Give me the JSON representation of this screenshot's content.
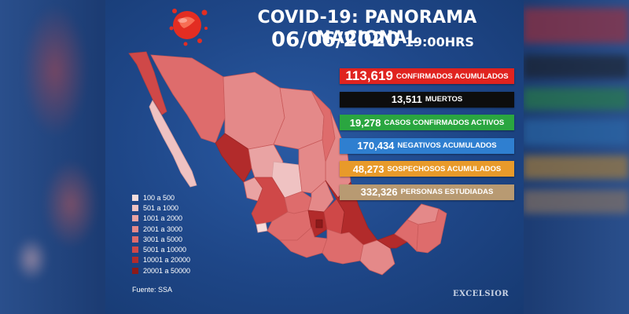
{
  "header": {
    "title": "COVID-19: PANORAMA NACIONAL",
    "date": "06/06/2020",
    "time": "19:00HRS"
  },
  "stats": [
    {
      "value": "113,619",
      "label": "CONFIRMADOS ACUMULADOS",
      "color": "#e0231f",
      "size": "big"
    },
    {
      "value": "13,511",
      "label": "MUERTOS",
      "color": "#0d0d0d",
      "size": "normal"
    },
    {
      "value": "19,278",
      "label": "CASOS CONFIRMADOS ACTIVOS",
      "color": "#2aa640",
      "size": "normal"
    },
    {
      "value": "170,434",
      "label": "NEGATIVOS ACUMULADOS",
      "color": "#2f7fd0",
      "size": "normal"
    },
    {
      "value": "48,273",
      "label": "SOSPECHOSOS ACUMULADOS",
      "color": "#e89a2a",
      "size": "normal"
    },
    {
      "value": "332,326",
      "label": "PERSONAS ESTUDIADAS",
      "color": "#b89a72",
      "size": "normal"
    }
  ],
  "legend": [
    {
      "label": "100 a 500",
      "color": "#f4dcdc"
    },
    {
      "label": "501 a 1000",
      "color": "#efc2c2"
    },
    {
      "label": "1001 a 2000",
      "color": "#e9a3a3"
    },
    {
      "label": "2001 a 3000",
      "color": "#e48989"
    },
    {
      "label": "3001 a 5000",
      "color": "#de6c6c"
    },
    {
      "label": "5001 a 10000",
      "color": "#cf4848"
    },
    {
      "label": "10001 a 20000",
      "color": "#b22b2b"
    },
    {
      "label": "20001 a 50000",
      "color": "#8c1a1a"
    }
  ],
  "source": "Fuente: SSA",
  "brand": "EXCELSIOR",
  "colors": {
    "background": "#1e4687",
    "map_base": "#de6c6c",
    "map_outline": "#c95a5a"
  }
}
